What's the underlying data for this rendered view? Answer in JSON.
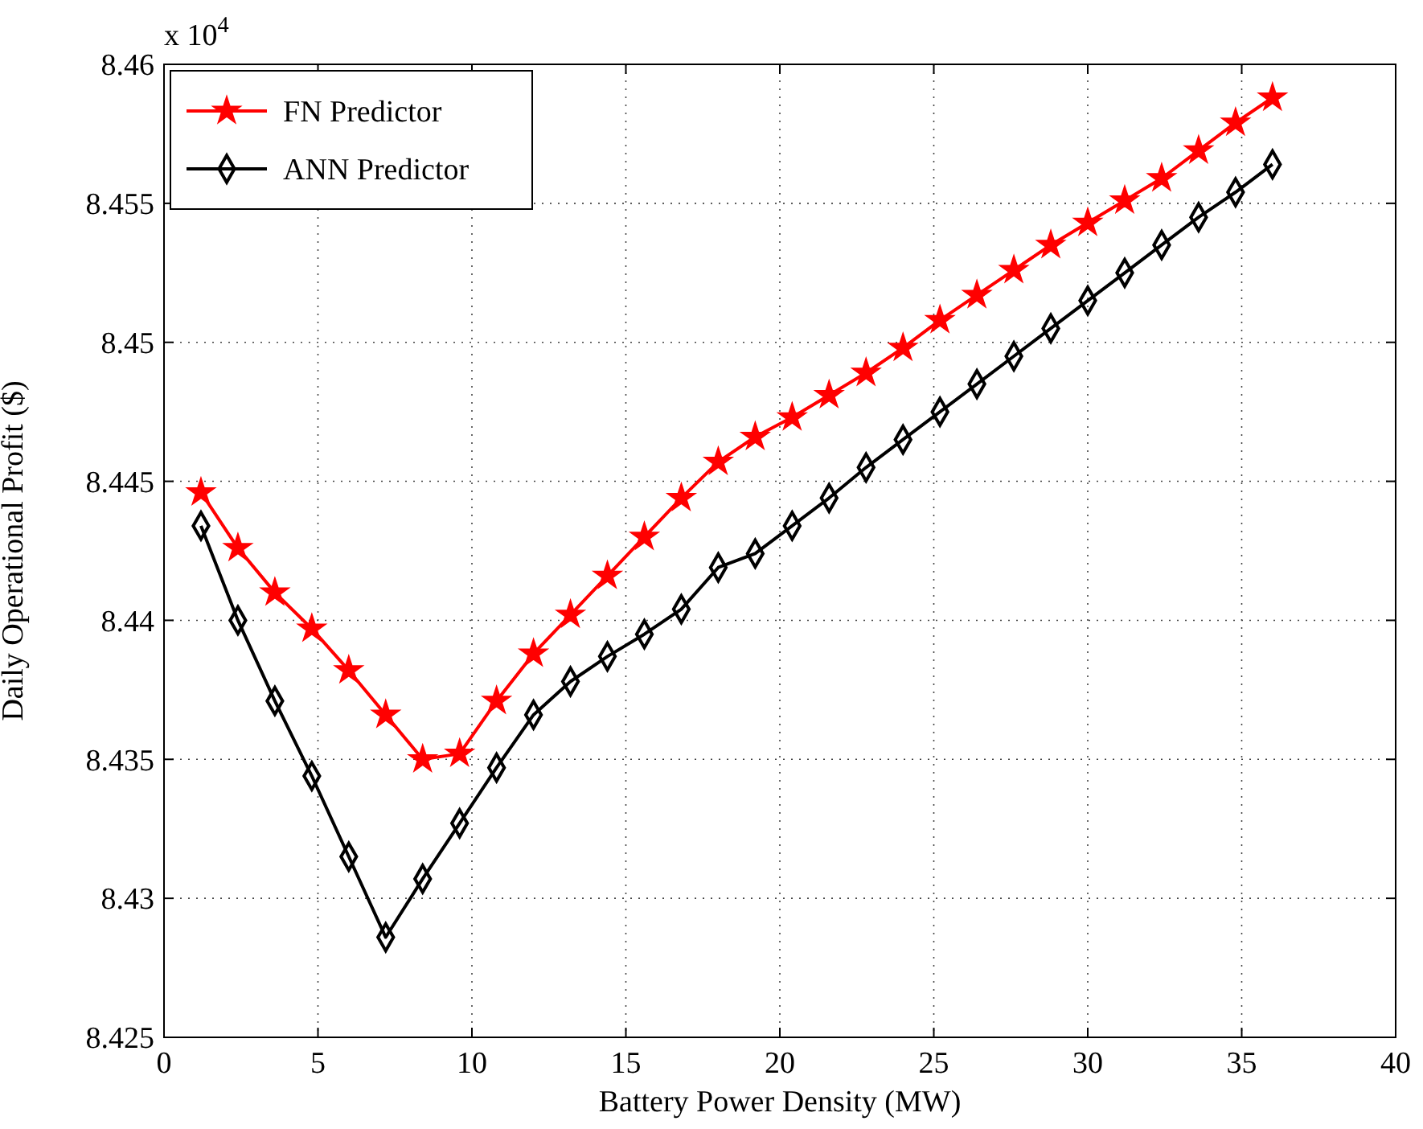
{
  "chart_data": {
    "type": "line",
    "xlabel": "Battery Power Density (MW)",
    "ylabel": "Daily Operational Profit ($)",
    "annotations": [
      "x 10$^{4}$"
    ],
    "x": [
      1.2,
      2.4,
      3.6,
      4.8,
      6,
      7.2,
      8.4,
      9.6,
      10.8,
      12,
      13.2,
      14.4,
      15.6,
      16.8,
      18,
      19.2,
      20.4,
      21.6,
      22.8,
      24,
      25.2,
      26.4,
      27.6,
      28.8,
      30,
      31.2,
      32.4,
      33.6,
      34.8,
      36
    ],
    "series": [
      {
        "name": "FN Predictor",
        "color": "#ff0000",
        "marker": "star",
        "values": [
          8.4446,
          8.4426,
          8.441,
          8.4397,
          8.4382,
          8.4366,
          8.435,
          8.4352,
          8.4371,
          8.4388,
          8.4402,
          8.4416,
          8.443,
          8.4444,
          8.4457,
          8.4466,
          8.4473,
          8.4481,
          8.4489,
          8.4498,
          8.4508,
          8.4517,
          8.4526,
          8.4535,
          8.4543,
          8.4551,
          8.4559,
          8.4569,
          8.4579,
          8.4588
        ]
      },
      {
        "name": "ANN Predictor",
        "color": "#000000",
        "marker": "diamond",
        "values": [
          8.4434,
          8.44,
          8.4371,
          8.4344,
          8.4315,
          8.4286,
          8.4307,
          8.4327,
          8.4347,
          8.4366,
          8.4378,
          8.4387,
          8.4395,
          8.4404,
          8.4419,
          8.4424,
          8.4434,
          8.4444,
          8.4455,
          8.4465,
          8.4475,
          8.4485,
          8.4495,
          8.4505,
          8.4515,
          8.4525,
          8.4535,
          8.4545,
          8.4554,
          8.4564
        ]
      }
    ],
    "xlim": [
      0,
      40
    ],
    "xticks": [
      0,
      5,
      10,
      15,
      20,
      25,
      30,
      35,
      40
    ],
    "ylim": [
      8.425,
      8.46
    ],
    "yticks": [
      8.425,
      8.43,
      8.435,
      8.44,
      8.445,
      8.45,
      8.455,
      8.46
    ],
    "grid": true,
    "legend": "top left",
    "line_style": "solid"
  }
}
